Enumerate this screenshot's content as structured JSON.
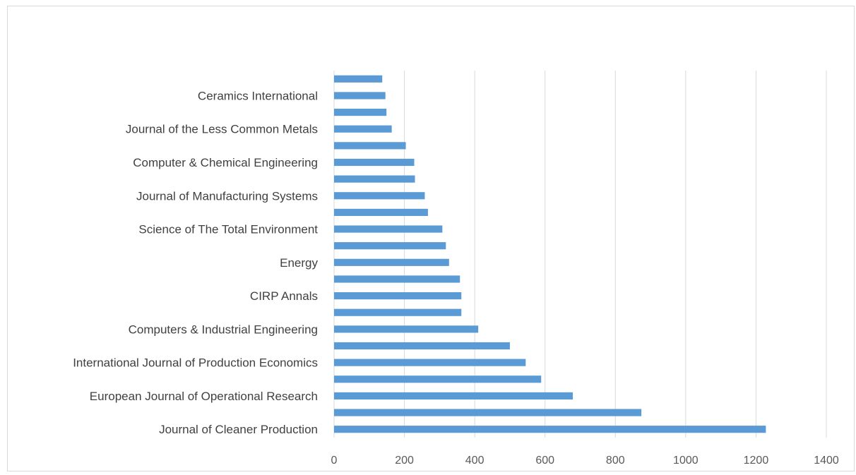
{
  "chart_data": {
    "type": "bar",
    "orientation": "horizontal",
    "title": "",
    "xlabel": "",
    "ylabel": "",
    "xlim": [
      0,
      1400
    ],
    "xticks": [
      0,
      200,
      400,
      600,
      800,
      1000,
      1200,
      1400
    ],
    "grid": "vertical",
    "legend": "none",
    "bar_color": "#5b9bd5",
    "grid_color": "#d9d9d9",
    "categories": [
      "Journal of Cleaner Production",
      "",
      "European Journal of Operational Research",
      "",
      "International Journal of Production Economics",
      "",
      "Computers & Industrial Engineering",
      "",
      "CIRP Annals",
      "",
      "Energy",
      "",
      "Science of The Total Environment",
      "",
      "Journal of Manufacturing Systems",
      "",
      "Computer & Chemical Engineering",
      "",
      "Journal of the Less Common Metals",
      "",
      "Ceramics International",
      ""
    ],
    "values": [
      1228,
      874,
      679,
      589,
      545,
      500,
      410,
      362,
      362,
      358,
      327,
      318,
      308,
      267,
      258,
      230,
      228,
      204,
      164,
      149,
      146,
      137
    ]
  }
}
